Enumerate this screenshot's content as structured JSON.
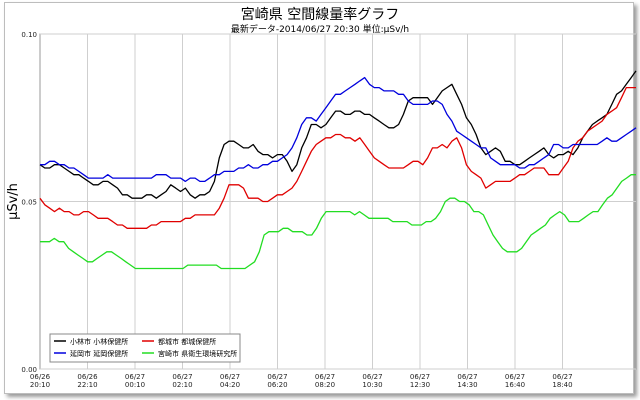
{
  "chart_data": {
    "type": "line",
    "title": "宮崎県 空間線量率グラフ",
    "subtitle": "最新データ-2014/06/27 20:30 単位:μSv/h",
    "ylabel": "μSv/h",
    "ylim": [
      0.0,
      0.1
    ],
    "yticks": [
      "0.00",
      "0.05",
      "0.10"
    ],
    "grid": true,
    "legend_position": "bottom-left",
    "x_tick_labels": [
      [
        "06/26",
        "20:10"
      ],
      [
        "06/26",
        "22:10"
      ],
      [
        "06/27",
        "00:10"
      ],
      [
        "06/27",
        "02:10"
      ],
      [
        "06/27",
        "04:20"
      ],
      [
        "06/27",
        "06:20"
      ],
      [
        "06/27",
        "08:20"
      ],
      [
        "06/27",
        "10:30"
      ],
      [
        "06/27",
        "12:30"
      ],
      [
        "06/27",
        "14:30"
      ],
      [
        "06/27",
        "16:40"
      ],
      [
        "06/27",
        "18:40"
      ]
    ],
    "series": [
      {
        "name": "小林市 小林保健所",
        "color": "#000000",
        "values": [
          0.061,
          0.06,
          0.06,
          0.061,
          0.061,
          0.06,
          0.059,
          0.058,
          0.058,
          0.057,
          0.056,
          0.055,
          0.055,
          0.056,
          0.056,
          0.055,
          0.054,
          0.052,
          0.052,
          0.051,
          0.051,
          0.051,
          0.052,
          0.052,
          0.051,
          0.052,
          0.053,
          0.055,
          0.054,
          0.053,
          0.054,
          0.052,
          0.051,
          0.052,
          0.052,
          0.053,
          0.056,
          0.063,
          0.067,
          0.068,
          0.068,
          0.067,
          0.066,
          0.066,
          0.067,
          0.065,
          0.064,
          0.064,
          0.063,
          0.064,
          0.064,
          0.062,
          0.059,
          0.061,
          0.066,
          0.069,
          0.073,
          0.073,
          0.072,
          0.073,
          0.075,
          0.077,
          0.077,
          0.076,
          0.076,
          0.077,
          0.077,
          0.076,
          0.076,
          0.075,
          0.074,
          0.073,
          0.072,
          0.072,
          0.073,
          0.076,
          0.08,
          0.081,
          0.081,
          0.081,
          0.081,
          0.079,
          0.081,
          0.083,
          0.084,
          0.085,
          0.082,
          0.079,
          0.075,
          0.073,
          0.07,
          0.066,
          0.064,
          0.065,
          0.066,
          0.065,
          0.062,
          0.062,
          0.061,
          0.061,
          0.062,
          0.063,
          0.064,
          0.065,
          0.066,
          0.064,
          0.063,
          0.064,
          0.064,
          0.065,
          0.064,
          0.066,
          0.069,
          0.071,
          0.073,
          0.074,
          0.075,
          0.076,
          0.079,
          0.082,
          0.083,
          0.085,
          0.087,
          0.089
        ]
      },
      {
        "name": "都城市 都城保健所",
        "color": "#e00000",
        "values": [
          0.051,
          0.049,
          0.048,
          0.047,
          0.048,
          0.047,
          0.047,
          0.046,
          0.046,
          0.047,
          0.047,
          0.046,
          0.045,
          0.045,
          0.045,
          0.044,
          0.043,
          0.043,
          0.042,
          0.042,
          0.042,
          0.042,
          0.042,
          0.043,
          0.043,
          0.044,
          0.044,
          0.044,
          0.044,
          0.044,
          0.045,
          0.045,
          0.046,
          0.046,
          0.046,
          0.046,
          0.046,
          0.048,
          0.051,
          0.055,
          0.055,
          0.055,
          0.054,
          0.051,
          0.051,
          0.051,
          0.05,
          0.05,
          0.051,
          0.052,
          0.052,
          0.053,
          0.054,
          0.056,
          0.059,
          0.062,
          0.065,
          0.067,
          0.068,
          0.069,
          0.069,
          0.07,
          0.07,
          0.069,
          0.069,
          0.068,
          0.069,
          0.067,
          0.065,
          0.063,
          0.062,
          0.061,
          0.06,
          0.06,
          0.06,
          0.06,
          0.061,
          0.062,
          0.062,
          0.061,
          0.063,
          0.066,
          0.066,
          0.067,
          0.066,
          0.068,
          0.069,
          0.066,
          0.061,
          0.059,
          0.058,
          0.057,
          0.054,
          0.055,
          0.056,
          0.056,
          0.056,
          0.056,
          0.057,
          0.058,
          0.058,
          0.059,
          0.06,
          0.06,
          0.06,
          0.058,
          0.058,
          0.058,
          0.06,
          0.062,
          0.066,
          0.068,
          0.069,
          0.071,
          0.072,
          0.073,
          0.074,
          0.076,
          0.077,
          0.078,
          0.081,
          0.084,
          0.084,
          0.084
        ]
      },
      {
        "name": "延岡市 延岡保健所",
        "color": "#0000dd",
        "values": [
          0.061,
          0.061,
          0.062,
          0.062,
          0.061,
          0.061,
          0.06,
          0.06,
          0.059,
          0.058,
          0.057,
          0.057,
          0.057,
          0.057,
          0.058,
          0.057,
          0.057,
          0.057,
          0.057,
          0.057,
          0.057,
          0.057,
          0.057,
          0.057,
          0.058,
          0.058,
          0.058,
          0.057,
          0.057,
          0.057,
          0.056,
          0.057,
          0.057,
          0.056,
          0.056,
          0.057,
          0.058,
          0.058,
          0.059,
          0.059,
          0.059,
          0.06,
          0.06,
          0.061,
          0.06,
          0.06,
          0.061,
          0.061,
          0.062,
          0.062,
          0.063,
          0.064,
          0.066,
          0.069,
          0.073,
          0.075,
          0.075,
          0.074,
          0.076,
          0.078,
          0.08,
          0.082,
          0.082,
          0.083,
          0.084,
          0.085,
          0.086,
          0.087,
          0.085,
          0.084,
          0.084,
          0.083,
          0.083,
          0.083,
          0.082,
          0.082,
          0.08,
          0.079,
          0.079,
          0.079,
          0.079,
          0.08,
          0.08,
          0.079,
          0.076,
          0.074,
          0.071,
          0.07,
          0.069,
          0.068,
          0.067,
          0.066,
          0.066,
          0.063,
          0.062,
          0.061,
          0.061,
          0.061,
          0.061,
          0.06,
          0.06,
          0.061,
          0.061,
          0.062,
          0.063,
          0.064,
          0.067,
          0.067,
          0.066,
          0.066,
          0.067,
          0.067,
          0.067,
          0.067,
          0.067,
          0.067,
          0.068,
          0.069,
          0.068,
          0.068,
          0.069,
          0.07,
          0.071,
          0.072
        ]
      },
      {
        "name": "宮崎市 県衛生環境研究所",
        "color": "#22dd22",
        "values": [
          0.038,
          0.038,
          0.038,
          0.039,
          0.038,
          0.038,
          0.036,
          0.035,
          0.034,
          0.033,
          0.032,
          0.032,
          0.033,
          0.034,
          0.035,
          0.035,
          0.034,
          0.033,
          0.032,
          0.031,
          0.03,
          0.03,
          0.03,
          0.03,
          0.03,
          0.03,
          0.03,
          0.03,
          0.03,
          0.03,
          0.03,
          0.031,
          0.031,
          0.031,
          0.031,
          0.031,
          0.031,
          0.031,
          0.03,
          0.03,
          0.03,
          0.03,
          0.03,
          0.03,
          0.031,
          0.032,
          0.035,
          0.04,
          0.041,
          0.041,
          0.041,
          0.042,
          0.042,
          0.041,
          0.041,
          0.041,
          0.04,
          0.04,
          0.042,
          0.045,
          0.047,
          0.047,
          0.047,
          0.047,
          0.047,
          0.047,
          0.046,
          0.047,
          0.046,
          0.045,
          0.045,
          0.045,
          0.045,
          0.045,
          0.044,
          0.044,
          0.044,
          0.044,
          0.043,
          0.043,
          0.043,
          0.044,
          0.044,
          0.045,
          0.047,
          0.05,
          0.051,
          0.051,
          0.05,
          0.05,
          0.049,
          0.047,
          0.047,
          0.046,
          0.043,
          0.04,
          0.038,
          0.036,
          0.035,
          0.035,
          0.035,
          0.036,
          0.038,
          0.04,
          0.041,
          0.042,
          0.043,
          0.045,
          0.046,
          0.047,
          0.046,
          0.044,
          0.044,
          0.044,
          0.045,
          0.046,
          0.047,
          0.047,
          0.049,
          0.051,
          0.052,
          0.054,
          0.056,
          0.057,
          0.058,
          0.058
        ]
      }
    ]
  }
}
